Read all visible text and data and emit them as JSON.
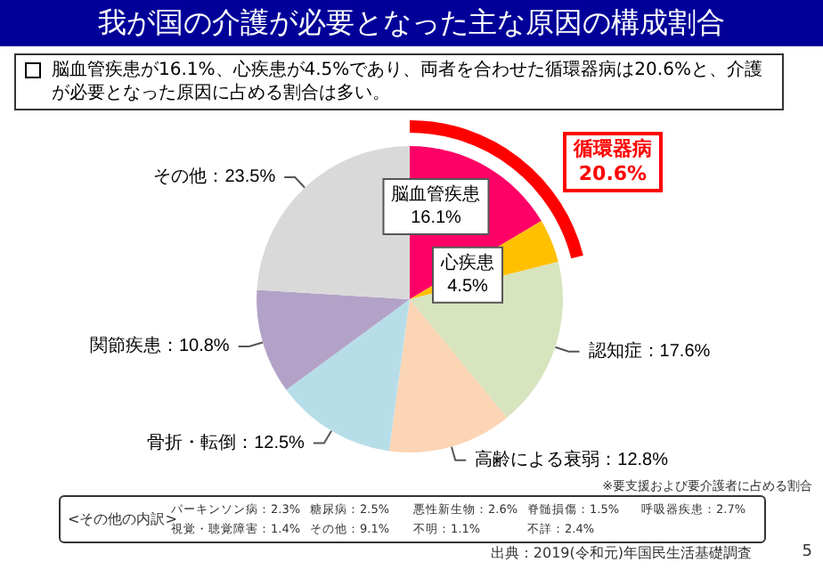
{
  "chart_data": {
    "type": "pie",
    "title": "我が国の介護が必要となった主な原因の構成割合",
    "subtitle": "脳血管疾患が16.1%、心疾患が4.5%であり、両者を合わせた循環器病は20.6%と、介護が必要となった原因に占める割合は多い。",
    "categories": [
      "脳血管疾患",
      "心疾患",
      "認知症",
      "高齢による衰弱",
      "骨折・転倒",
      "関節疾患",
      "その他"
    ],
    "values": [
      16.1,
      4.5,
      17.6,
      12.8,
      12.5,
      10.8,
      23.5
    ],
    "value_labels": [
      "16.1%",
      "4.5%",
      "17.6%",
      "12.8%",
      "12.5%",
      "10.8%",
      "23.5%"
    ],
    "colors": [
      "#ff0066",
      "#ffc000",
      "#d7e4bd",
      "#fcd5b5",
      "#b7dee8",
      "#b3a2c7",
      "#d9d9d9"
    ],
    "annotations": [
      "循環器病",
      "20.6%",
      "※要支援および要介護者に占める割合",
      "<その他の内訳>",
      "パーキンソン病：2.3%",
      "糖尿病：2.5%",
      "悪性新生物：2.6%",
      "脊髄損傷：1.5%",
      "呼吸器疾患：2.7%",
      "視覚・聴覚障害：1.4%",
      "その他：9.1%",
      "不明：1.1%",
      "不詳：2.4%",
      "出典：2019(令和元)年国民生活基礎調査",
      "5"
    ],
    "legend": false
  }
}
